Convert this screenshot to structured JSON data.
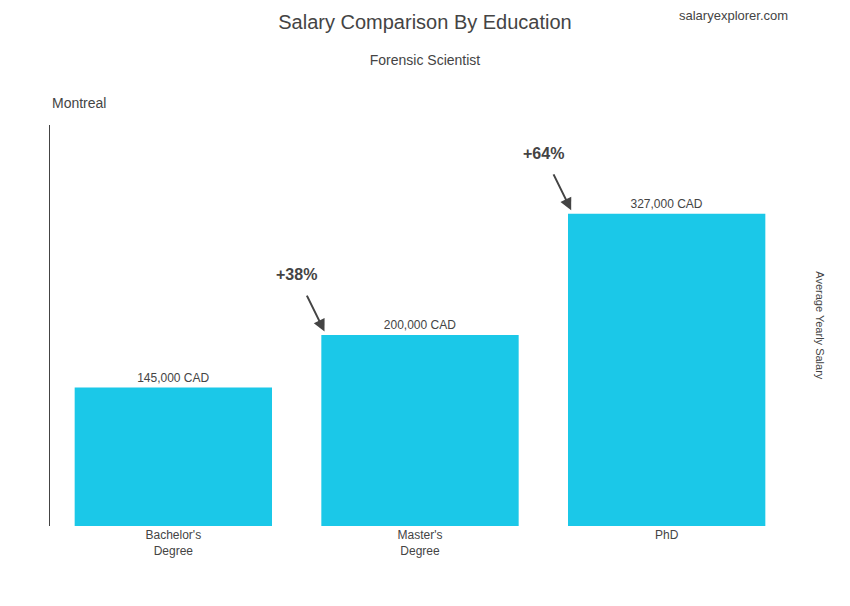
{
  "chart_data": {
    "type": "bar",
    "title": "Salary Comparison By Education",
    "subtitle": "Forensic Scientist",
    "location": "Montreal",
    "categories": [
      "Bachelor's\nDegree",
      "Master's\nDegree",
      "PhD"
    ],
    "values": [
      145000,
      200000,
      327000
    ],
    "value_labels": [
      "145,000 CAD",
      "200,000 CAD",
      "327,000 CAD"
    ],
    "data_labels": true,
    "color": "#1BC8E8",
    "ylim": [
      0,
      420000
    ],
    "grid": false,
    "tick_labels": "x",
    "pct_labels": [
      "+38%",
      "+64%"
    ],
    "watermark": "salaryexplorer.com",
    "side_label": "Average Yearly Salary"
  }
}
